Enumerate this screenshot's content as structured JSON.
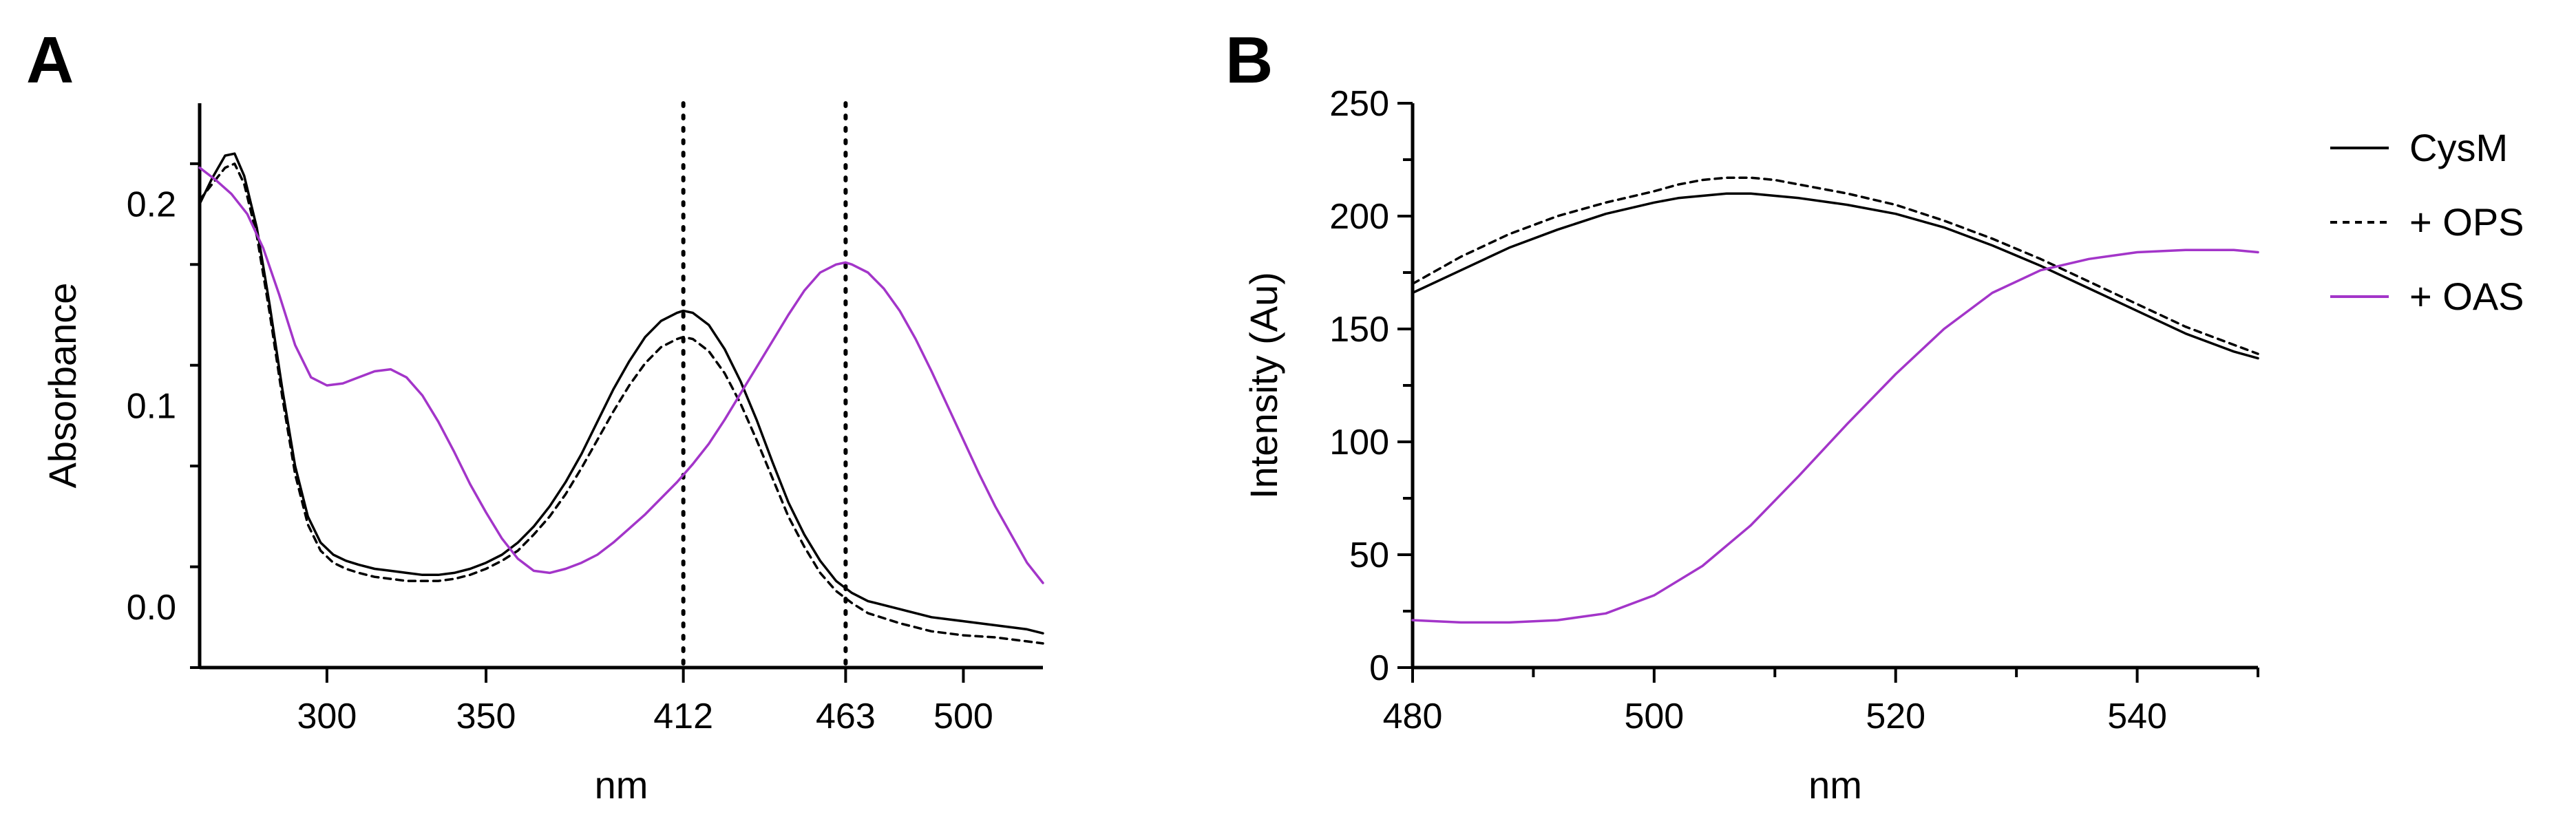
{
  "panels": {
    "a": {
      "letter": "A"
    },
    "b": {
      "letter": "B"
    }
  },
  "chart_data": [
    {
      "type": "line",
      "panel": "A",
      "title": "",
      "xlabel": "nm",
      "ylabel": "Absorbance",
      "xlim": [
        260,
        525
      ],
      "ylim": [
        -0.03,
        0.25
      ],
      "xticks": [
        300,
        350,
        412,
        463,
        500
      ],
      "xtick_labels": [
        "300",
        "350",
        "412",
        "463",
        "500"
      ],
      "yticks": [
        0.0,
        0.1,
        0.2
      ],
      "ytick_labels": [
        "0.0",
        "0.1",
        "0.2"
      ],
      "reference_lines": [
        412,
        463
      ],
      "grid": false,
      "series": [
        {
          "name": "CysM",
          "color": "#000000",
          "style": "solid",
          "x": [
            260,
            264,
            268,
            271,
            274,
            278,
            282,
            286,
            290,
            294,
            298,
            302,
            306,
            310,
            315,
            320,
            325,
            330,
            335,
            340,
            345,
            350,
            355,
            360,
            365,
            370,
            375,
            380,
            385,
            390,
            395,
            400,
            405,
            410,
            412,
            415,
            420,
            425,
            430,
            435,
            440,
            445,
            450,
            455,
            460,
            465,
            470,
            480,
            490,
            500,
            510,
            520,
            525
          ],
          "y": [
            0.2,
            0.213,
            0.224,
            0.225,
            0.214,
            0.188,
            0.15,
            0.108,
            0.07,
            0.045,
            0.032,
            0.026,
            0.023,
            0.021,
            0.019,
            0.018,
            0.017,
            0.016,
            0.016,
            0.017,
            0.019,
            0.022,
            0.026,
            0.032,
            0.04,
            0.05,
            0.062,
            0.076,
            0.092,
            0.108,
            0.122,
            0.134,
            0.142,
            0.146,
            0.147,
            0.146,
            0.14,
            0.128,
            0.112,
            0.093,
            0.072,
            0.052,
            0.036,
            0.023,
            0.013,
            0.007,
            0.003,
            -0.001,
            -0.005,
            -0.007,
            -0.009,
            -0.011,
            -0.013
          ]
        },
        {
          "name": "+ OPS",
          "color": "#000000",
          "style": "dashed",
          "x": [
            260,
            264,
            268,
            271,
            274,
            278,
            282,
            286,
            290,
            294,
            298,
            302,
            306,
            310,
            315,
            320,
            325,
            330,
            335,
            340,
            345,
            350,
            355,
            360,
            365,
            370,
            375,
            380,
            385,
            390,
            395,
            400,
            405,
            410,
            412,
            415,
            420,
            425,
            430,
            435,
            440,
            445,
            450,
            455,
            460,
            465,
            470,
            480,
            490,
            500,
            510,
            520,
            525
          ],
          "y": [
            0.202,
            0.21,
            0.218,
            0.22,
            0.21,
            0.184,
            0.146,
            0.104,
            0.066,
            0.041,
            0.028,
            0.022,
            0.019,
            0.017,
            0.015,
            0.014,
            0.013,
            0.013,
            0.013,
            0.014,
            0.016,
            0.019,
            0.023,
            0.028,
            0.036,
            0.045,
            0.056,
            0.069,
            0.083,
            0.097,
            0.11,
            0.121,
            0.129,
            0.133,
            0.134,
            0.133,
            0.127,
            0.116,
            0.101,
            0.083,
            0.064,
            0.045,
            0.03,
            0.017,
            0.008,
            0.002,
            -0.003,
            -0.008,
            -0.012,
            -0.014,
            -0.015,
            -0.017,
            -0.018
          ]
        },
        {
          "name": "+ OAS",
          "color": "#a335c9",
          "style": "solid",
          "x": [
            260,
            265,
            270,
            275,
            280,
            285,
            290,
            295,
            300,
            305,
            310,
            315,
            320,
            325,
            330,
            335,
            340,
            345,
            350,
            355,
            360,
            365,
            370,
            375,
            380,
            385,
            390,
            395,
            400,
            405,
            410,
            415,
            420,
            425,
            430,
            435,
            440,
            445,
            450,
            455,
            460,
            463,
            465,
            470,
            475,
            480,
            485,
            490,
            495,
            500,
            505,
            510,
            515,
            520,
            525
          ],
          "y": [
            0.218,
            0.212,
            0.205,
            0.195,
            0.178,
            0.155,
            0.13,
            0.114,
            0.11,
            0.111,
            0.114,
            0.117,
            0.118,
            0.114,
            0.105,
            0.092,
            0.077,
            0.061,
            0.047,
            0.034,
            0.024,
            0.018,
            0.017,
            0.019,
            0.022,
            0.026,
            0.032,
            0.039,
            0.046,
            0.054,
            0.062,
            0.071,
            0.081,
            0.093,
            0.106,
            0.119,
            0.132,
            0.145,
            0.157,
            0.166,
            0.17,
            0.171,
            0.17,
            0.166,
            0.158,
            0.147,
            0.133,
            0.117,
            0.1,
            0.083,
            0.066,
            0.05,
            0.036,
            0.022,
            0.012
          ]
        }
      ]
    },
    {
      "type": "line",
      "panel": "B",
      "title": "",
      "xlabel": "nm",
      "ylabel": "Intensity (Au)",
      "xlim": [
        480,
        550
      ],
      "ylim": [
        0,
        250
      ],
      "xticks": [
        480,
        500,
        520,
        540
      ],
      "xtick_labels": [
        "480",
        "500",
        "520",
        "540"
      ],
      "yticks": [
        0,
        50,
        100,
        150,
        200,
        250
      ],
      "ytick_labels": [
        "0",
        "50",
        "100",
        "150",
        "200",
        "250"
      ],
      "grid": false,
      "legend": "right",
      "series": [
        {
          "name": "CysM",
          "color": "#000000",
          "style": "solid",
          "x": [
            480,
            484,
            488,
            492,
            496,
            500,
            502,
            504,
            506,
            508,
            510,
            512,
            516,
            520,
            524,
            528,
            532,
            536,
            540,
            544,
            548,
            550
          ],
          "y": [
            166,
            176,
            186,
            194,
            201,
            206,
            208,
            209,
            210,
            210,
            209,
            208,
            205,
            201,
            195,
            187,
            178,
            168,
            158,
            148,
            140,
            137
          ]
        },
        {
          "name": "+ OPS",
          "color": "#000000",
          "style": "dashed",
          "x": [
            480,
            484,
            488,
            492,
            496,
            500,
            502,
            504,
            506,
            508,
            510,
            512,
            516,
            520,
            524,
            528,
            532,
            536,
            540,
            544,
            548,
            550
          ],
          "y": [
            170,
            182,
            192,
            200,
            206,
            211,
            214,
            216,
            217,
            217,
            216,
            214,
            210,
            205,
            198,
            190,
            181,
            171,
            161,
            151,
            143,
            139
          ]
        },
        {
          "name": "+ OAS",
          "color": "#a335c9",
          "style": "solid",
          "x": [
            480,
            484,
            488,
            492,
            496,
            500,
            504,
            508,
            512,
            516,
            520,
            524,
            528,
            532,
            536,
            540,
            544,
            548,
            550
          ],
          "y": [
            21,
            20,
            20,
            21,
            24,
            32,
            45,
            63,
            85,
            108,
            130,
            150,
            166,
            176,
            181,
            184,
            185,
            185,
            184
          ]
        }
      ]
    }
  ]
}
